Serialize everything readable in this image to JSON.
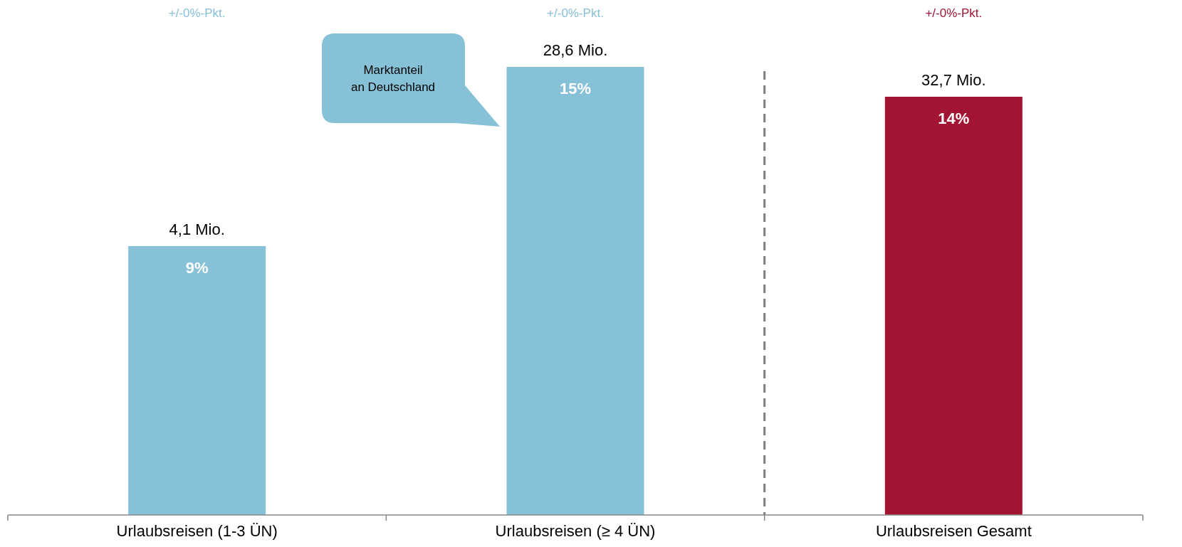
{
  "chart_data": {
    "type": "bar",
    "categories": [
      "Urlaubsreisen (1-3 ÜN)",
      "Urlaubsreisen (≥ 4 ÜN)",
      "Urlaubsreisen Gesamt"
    ],
    "values": [
      9,
      15,
      14
    ],
    "colors": [
      "#86c1d7",
      "#86c1d7",
      "#a31432"
    ],
    "value_labels": [
      "9%",
      "15%",
      "14%"
    ],
    "annotations": [
      {
        "text": "4,1 Mio.",
        "x": "Urlaubsreisen (1-3 ÜN)",
        "y": 9
      },
      {
        "text": "28,6 Mio.",
        "x": "Urlaubsreisen (≥ 4 ÜN)",
        "y": 15
      },
      {
        "text": "32,7 Mio.",
        "x": "Urlaubsreisen Gesamt",
        "y": 14
      },
      "+/-0%-Pkt.",
      "+/-0%-Pkt.",
      "+/-0%-Pkt.",
      "Marktanteil an Deutschland"
    ]
  }
}
